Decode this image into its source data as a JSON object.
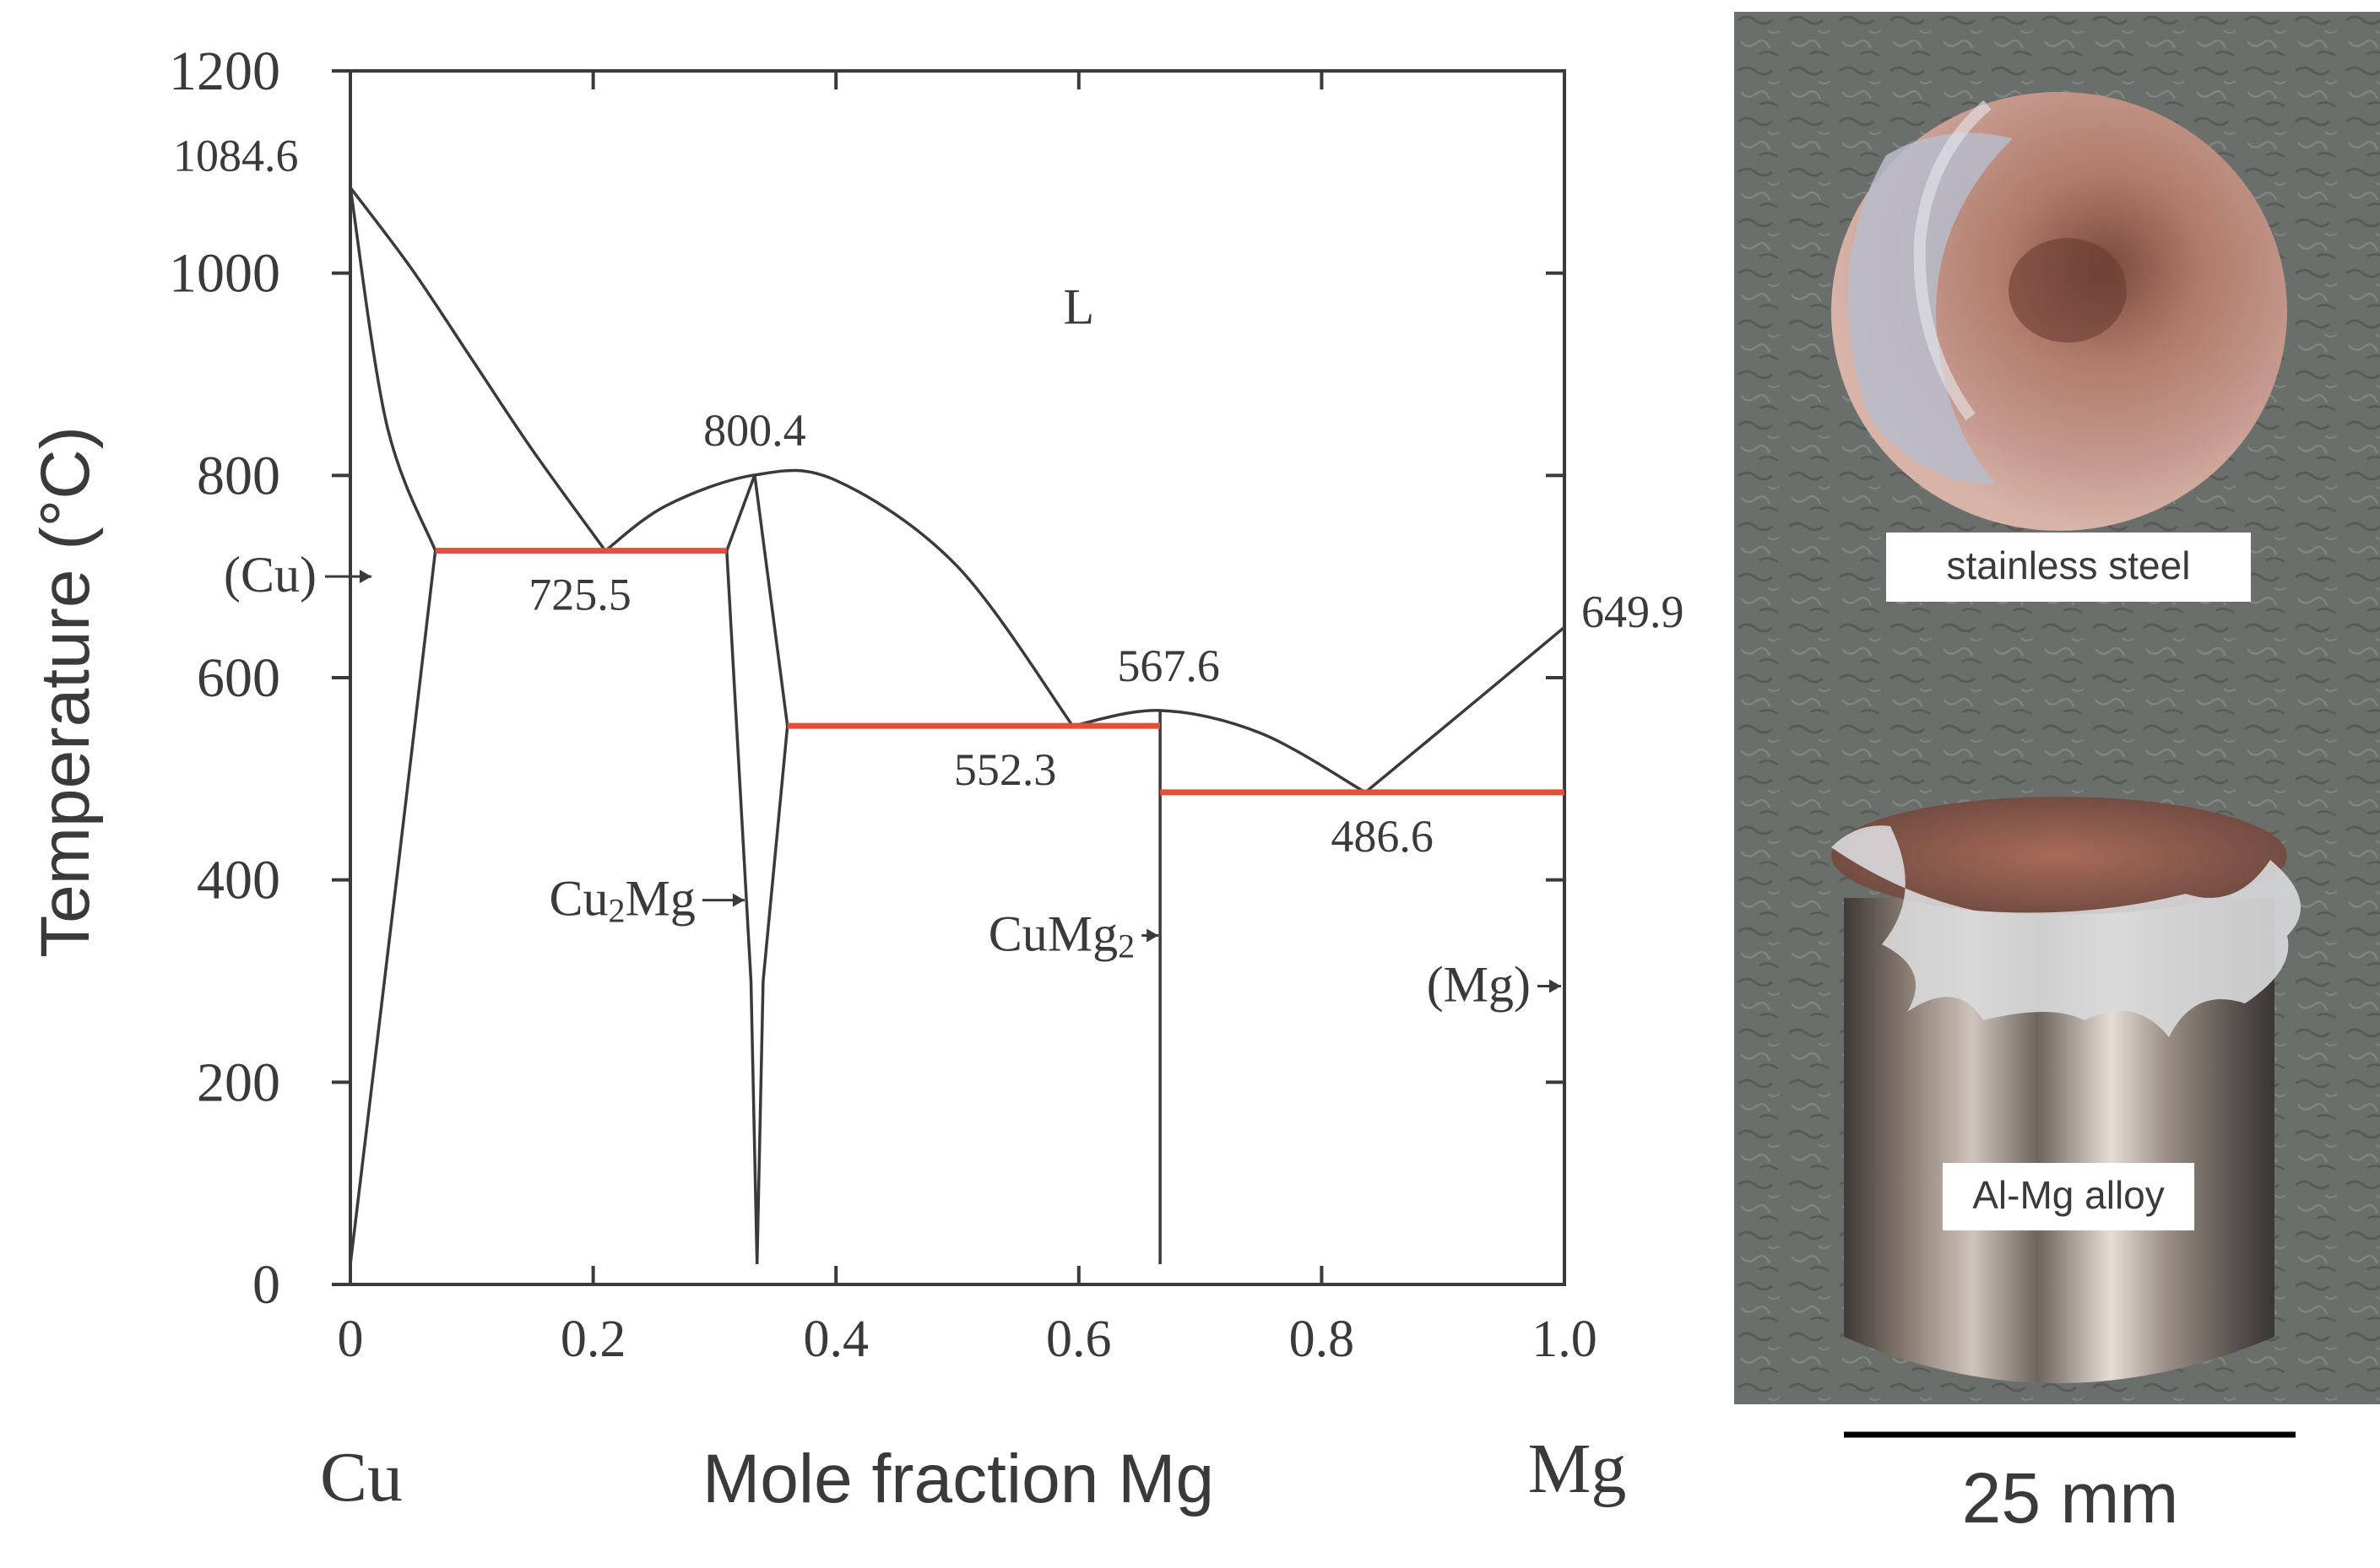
{
  "chart_data": {
    "type": "phase-diagram",
    "title": "",
    "xlabel": "Mole fraction Mg",
    "ylabel": "Temperature (°C)",
    "xlim": [
      0,
      1.0
    ],
    "ylim": [
      0,
      1200
    ],
    "x_tick_labels": [
      "0",
      "0.2",
      "0.4",
      "0.6",
      "0.8",
      "1.0"
    ],
    "x_tick_values": [
      0,
      0.2,
      0.4,
      0.6,
      0.8,
      1.0
    ],
    "y_tick_labels": [
      "0",
      "200",
      "400",
      "600",
      "800",
      "1000",
      "1200"
    ],
    "y_tick_values": [
      0,
      200,
      400,
      600,
      800,
      1000,
      1200
    ],
    "end_labels": {
      "left": "Cu",
      "right": "Mg"
    },
    "special_points": [
      {
        "label": "1084.6",
        "x": 0.0,
        "y": 1084.6
      },
      {
        "label": "800.4",
        "x": 0.333,
        "y": 800.4
      },
      {
        "label": "725.5",
        "x": 0.21,
        "y": 725.5
      },
      {
        "label": "567.6",
        "x": 0.667,
        "y": 567.6
      },
      {
        "label": "552.3",
        "x": 0.595,
        "y": 552.3
      },
      {
        "label": "649.9",
        "x": 1.0,
        "y": 649.9
      },
      {
        "label": "486.6",
        "x": 0.836,
        "y": 486.6
      }
    ],
    "isotherms": [
      {
        "y": 725.5,
        "x": [
          0.07,
          0.31
        ]
      },
      {
        "y": 552.3,
        "x": [
          0.36,
          0.667
        ]
      },
      {
        "y": 486.6,
        "x": [
          0.667,
          1.0
        ]
      }
    ],
    "liquidus": [
      [
        [
          0.0,
          1084.6
        ],
        [
          0.05,
          1005
        ],
        [
          0.1,
          915
        ],
        [
          0.15,
          825
        ],
        [
          0.21,
          725.5
        ]
      ],
      [
        [
          0.21,
          725.5
        ],
        [
          0.26,
          770
        ],
        [
          0.333,
          800.4
        ],
        [
          0.4,
          795
        ],
        [
          0.5,
          710
        ],
        [
          0.595,
          552.3
        ]
      ],
      [
        [
          0.595,
          552.3
        ],
        [
          0.667,
          567.6
        ],
        [
          0.75,
          545
        ],
        [
          0.836,
          486.6
        ]
      ],
      [
        [
          0.836,
          486.6
        ],
        [
          0.92,
          570
        ],
        [
          1.0,
          649.9
        ]
      ]
    ],
    "solidus_cu": [
      [
        0.0,
        1084.6
      ],
      [
        0.03,
        850
      ],
      [
        0.07,
        725.5
      ],
      [
        0.04,
        420
      ],
      [
        0.0,
        20
      ]
    ],
    "cu2mg_phase": [
      [
        0.31,
        725.5
      ],
      [
        0.333,
        800.4
      ],
      [
        0.36,
        552.3
      ],
      [
        0.34,
        300
      ],
      [
        0.335,
        20
      ],
      [
        0.33,
        300
      ],
      [
        0.31,
        725.5
      ]
    ],
    "cumg2_line": [
      [
        0.667,
        567.6
      ],
      [
        0.667,
        20
      ]
    ],
    "phase_labels": [
      {
        "text": "L",
        "x": 0.6,
        "y": 950
      },
      {
        "text": "(Cu)",
        "x": 0.0,
        "y": 685,
        "side": "left"
      },
      {
        "text": "Cu",
        "sub": "2",
        "text2": "Mg",
        "x": 0.333,
        "y": 365
      },
      {
        "text": "CuMg",
        "sub": "2",
        "x": 0.667,
        "y": 330
      },
      {
        "text": "(Mg)",
        "x": 1.0,
        "y": 280
      }
    ]
  },
  "photos": {
    "top_caption": "stainless steel",
    "bottom_caption": "Al-Mg alloy",
    "scale_label": "25 mm"
  }
}
